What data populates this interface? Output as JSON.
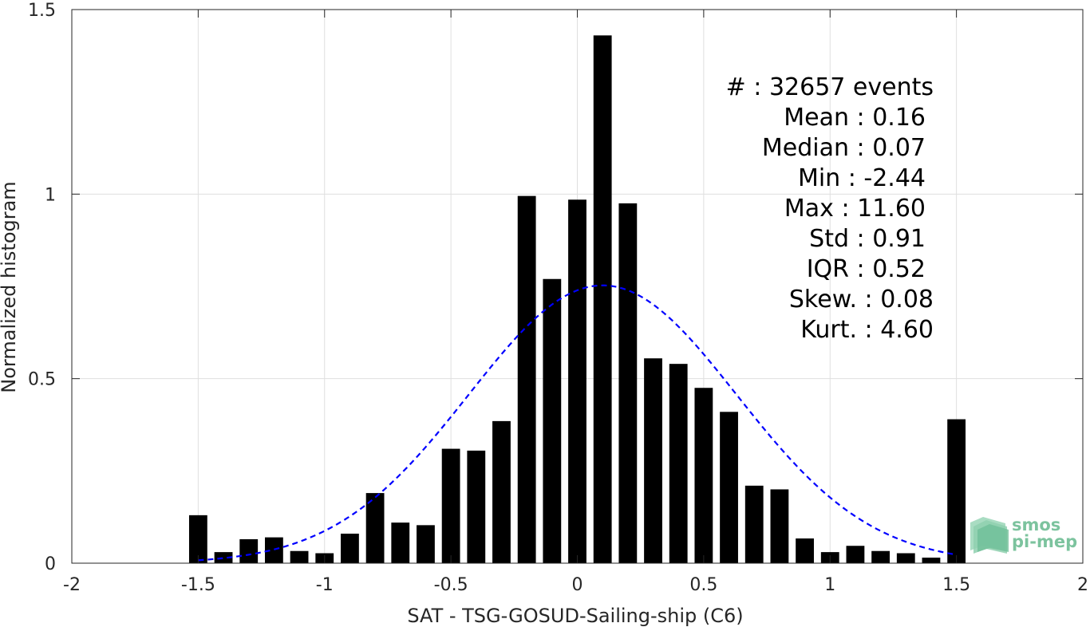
{
  "chart_data": {
    "type": "bar",
    "xlabel": "SAT - TSG-GOSUD-Sailing-ship (C6)",
    "ylabel": "Normalized histogram",
    "xlim": [
      -2,
      2
    ],
    "ylim": [
      0,
      1.5
    ],
    "xticks": [
      -2,
      -1.5,
      -1,
      -0.5,
      0,
      0.5,
      1,
      1.5,
      2
    ],
    "xtick_labels": [
      "-2",
      "-1.5",
      "-1",
      "-0.5",
      "0",
      "0.5",
      "1",
      "1.5",
      "2"
    ],
    "yticks": [
      0,
      0.5,
      1,
      1.5
    ],
    "ytick_labels": [
      "0",
      "0.5",
      "1",
      "1.5"
    ],
    "grid": true,
    "bar_color": "#000000",
    "bin_width": 0.1,
    "bars": [
      {
        "x": -1.5,
        "y": 0.13
      },
      {
        "x": -1.4,
        "y": 0.03
      },
      {
        "x": -1.3,
        "y": 0.065
      },
      {
        "x": -1.2,
        "y": 0.07
      },
      {
        "x": -1.1,
        "y": 0.033
      },
      {
        "x": -1.0,
        "y": 0.027
      },
      {
        "x": -0.9,
        "y": 0.08
      },
      {
        "x": -0.8,
        "y": 0.19
      },
      {
        "x": -0.7,
        "y": 0.11
      },
      {
        "x": -0.6,
        "y": 0.103
      },
      {
        "x": -0.5,
        "y": 0.31
      },
      {
        "x": -0.4,
        "y": 0.305
      },
      {
        "x": -0.3,
        "y": 0.385
      },
      {
        "x": -0.2,
        "y": 0.995
      },
      {
        "x": -0.1,
        "y": 0.77
      },
      {
        "x": 0.0,
        "y": 0.985
      },
      {
        "x": 0.1,
        "y": 1.43
      },
      {
        "x": 0.2,
        "y": 0.975
      },
      {
        "x": 0.3,
        "y": 0.555
      },
      {
        "x": 0.4,
        "y": 0.54
      },
      {
        "x": 0.5,
        "y": 0.475
      },
      {
        "x": 0.6,
        "y": 0.41
      },
      {
        "x": 0.7,
        "y": 0.21
      },
      {
        "x": 0.8,
        "y": 0.2
      },
      {
        "x": 0.9,
        "y": 0.067
      },
      {
        "x": 1.0,
        "y": 0.03
      },
      {
        "x": 1.1,
        "y": 0.047
      },
      {
        "x": 1.2,
        "y": 0.033
      },
      {
        "x": 1.3,
        "y": 0.027
      },
      {
        "x": 1.4,
        "y": 0.015
      },
      {
        "x": 1.5,
        "y": 0.39
      }
    ],
    "fit_curve": {
      "style": "dashed",
      "color": "#0000ff",
      "mean": 0.1,
      "std": 0.53,
      "x_range": [
        -1.5,
        1.5
      ]
    },
    "stats_lines": [
      "#  : 32657 events",
      "Mean : 0.16",
      "Median : 0.07",
      "Min : -2.44",
      "Max : 11.60",
      "Std : 0.91",
      "IQR : 0.52",
      "Skew. : 0.08",
      "Kurt. : 4.60"
    ]
  },
  "logo": {
    "line1": "smos",
    "line2": "pi-mep",
    "color": "#7cc39e"
  }
}
